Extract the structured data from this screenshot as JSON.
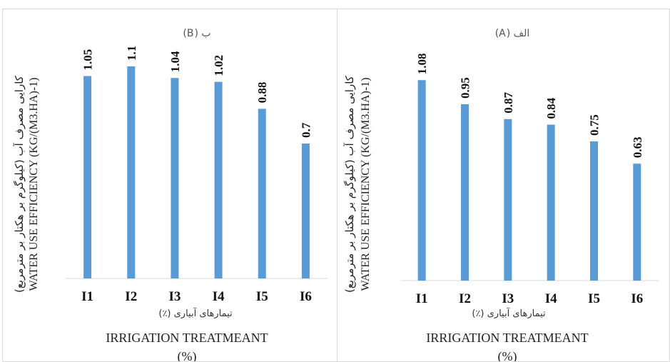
{
  "chart_data": [
    {
      "type": "bar",
      "title": "ب (B)",
      "ylabel_fa": "کارایی مصرف آب (کیلوگرم بر هکتار بر مترمربع)",
      "ylabel_en": "WATER USE EFFICIENCY (KG/(M3.HA)-1)",
      "xlabel_fa": "تیمارهای آبیاری (٪)",
      "xlabel_en": "IRRIGATION TREATMEANT",
      "xlabel_unit": "(%)",
      "categories": [
        "I1",
        "I2",
        "I3",
        "I4",
        "I5",
        "I6"
      ],
      "values": [
        1.05,
        1.1,
        1.04,
        1.02,
        0.88,
        0.7
      ],
      "value_labels": [
        "1.05",
        "1.1",
        "1.04",
        "1.02",
        "0.88",
        "0.7"
      ],
      "ylim": [
        0,
        1.2
      ],
      "bar_color": "#5b9bd5",
      "grid": false
    },
    {
      "type": "bar",
      "title": "الف (A)",
      "ylabel_fa": "کارایی مصرف آب (کیلوگرم بر هکتار بر مترمربع)",
      "ylabel_en": "WATER USE EFFICIENCY (KG/(M3.HA)-1)",
      "xlabel_fa": "تیمارهای آبیاری (٪)",
      "xlabel_en": "IRRIGATION TREATMEANT",
      "xlabel_unit": "(%)",
      "categories": [
        "I1",
        "I2",
        "I3",
        "I4",
        "I5",
        "I6"
      ],
      "values": [
        1.08,
        0.95,
        0.87,
        0.84,
        0.75,
        0.63
      ],
      "value_labels": [
        "1.08",
        "0.95",
        "0.87",
        "0.84",
        "0.75",
        "0.63"
      ],
      "ylim": [
        0,
        1.2
      ],
      "bar_color": "#5b9bd5",
      "grid": false
    }
  ]
}
